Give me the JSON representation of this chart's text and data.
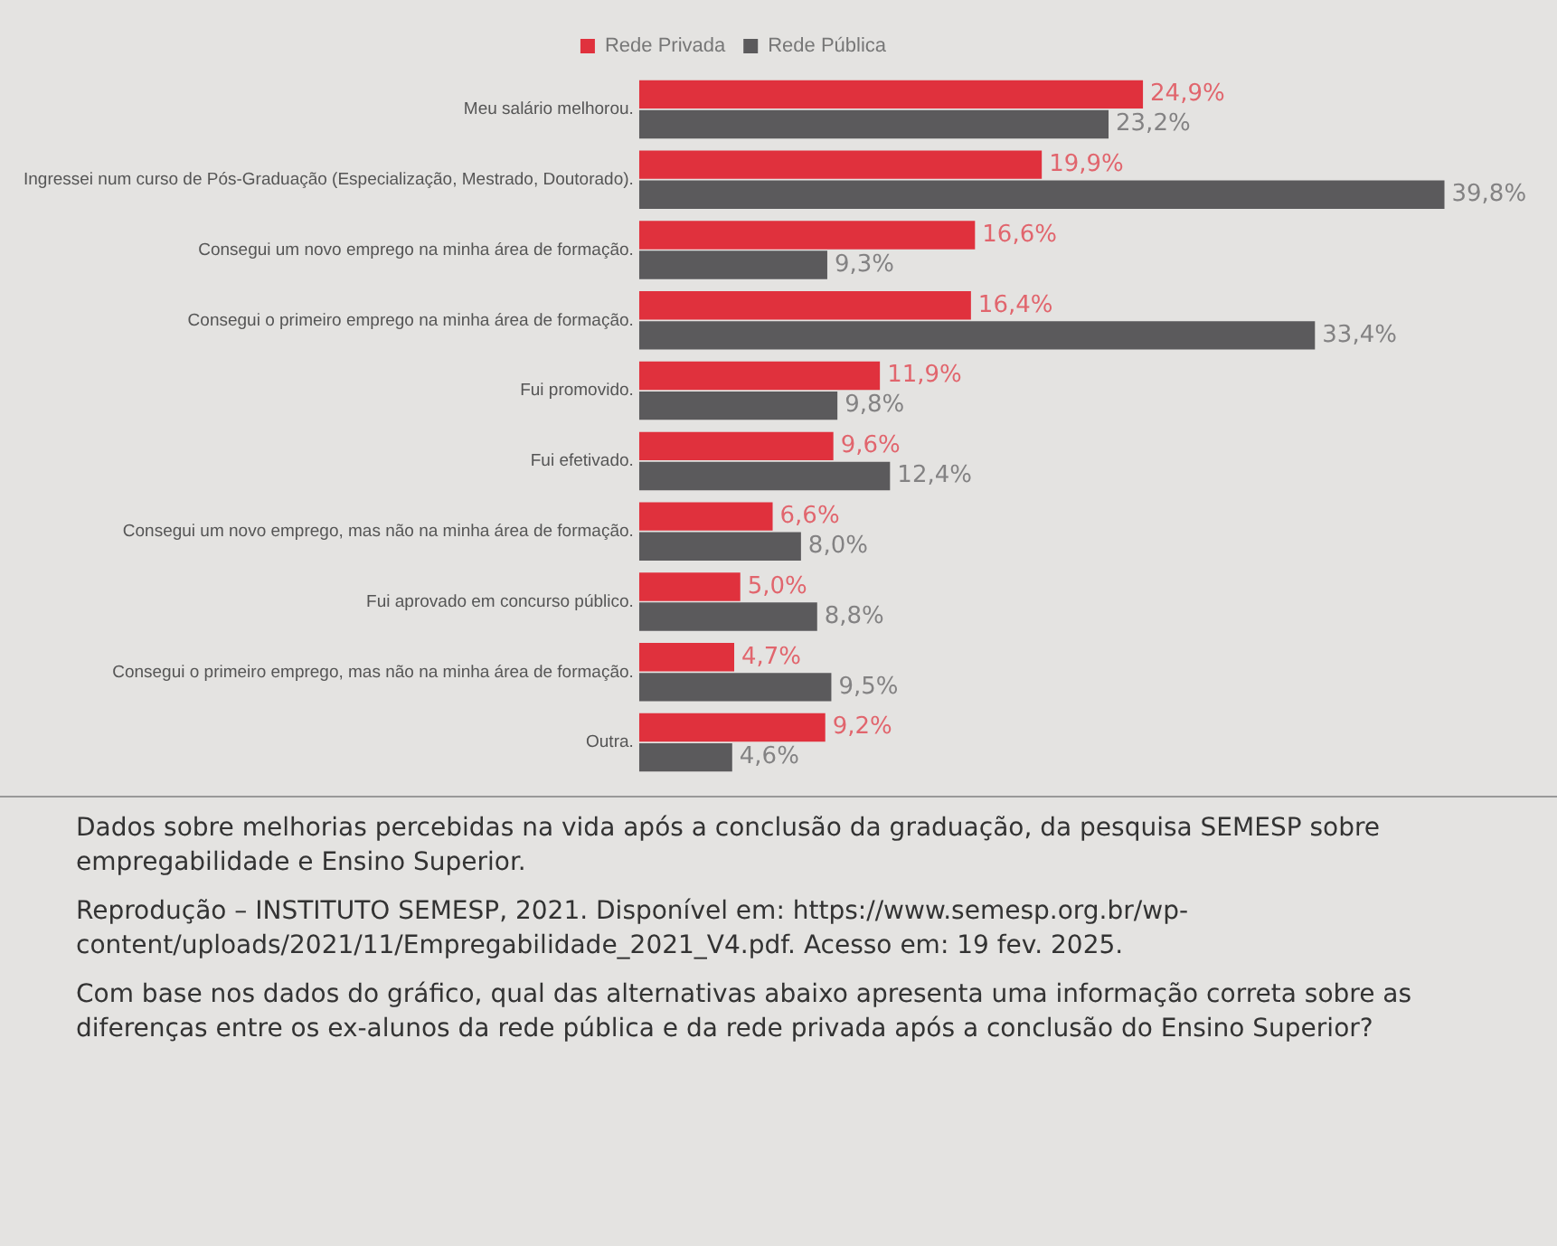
{
  "chart_data": {
    "type": "bar",
    "orientation": "horizontal",
    "legend": "top",
    "tick_labels": "y",
    "grid": false,
    "categories": [
      "Meu salário melhorou.",
      "Ingressei num curso de Pós-Graduação (Especialização, Mestrado, Doutorado).",
      "Consegui um novo emprego na minha área de formação.",
      "Consegui o primeiro emprego na minha área de formação.",
      "Fui promovido.",
      "Fui efetivado.",
      "Consegui um novo emprego, mas não na minha área de formação.",
      "Fui aprovado em concurso público.",
      "Consegui o primeiro emprego, mas não na minha área de formação.",
      "Outra."
    ],
    "series": [
      {
        "name": "Rede Privada",
        "color": "#e0313d",
        "values": [
          24.9,
          19.9,
          16.6,
          16.4,
          11.9,
          9.6,
          6.6,
          5.0,
          4.7,
          9.2
        ],
        "value_labels": [
          "24,9%",
          "19,9%",
          "16,6%",
          "16,4%",
          "11,9%",
          "9,6%",
          "6,6%",
          "5,0%",
          "4,7%",
          "9,2%"
        ]
      },
      {
        "name": "Rede Pública",
        "color": "#5b5a5c",
        "values": [
          23.2,
          39.8,
          9.3,
          33.4,
          9.8,
          12.4,
          8.0,
          8.8,
          9.5,
          4.6
        ],
        "value_labels": [
          "23,2%",
          "39,8%",
          "9,3%",
          "33,4%",
          "9,8%",
          "12,4%",
          "8,0%",
          "8,8%",
          "9,5%",
          "4,6%"
        ]
      }
    ],
    "annotations": [
      "Dados sobre melhorias percebidas na vida após a conclusão da graduação, da pesquisa SEMESP sobre empregabilidade e Ensino Superior.",
      "Reprodução – INSTITUTO SEMESP, 2021. Disponível em: https://www.semesp.org.br/wp-content/uploads/2021/11/Empregabilidade_2021_V4.pdf. Acesso em: 19 fev. 2025.",
      "Com base nos dados do gráfico, qual das alternativas abaixo apresenta uma informação correta sobre as diferenças entre os ex-alunos da rede pública e da rede privada após a conclusão do Ensino Superior?"
    ]
  }
}
